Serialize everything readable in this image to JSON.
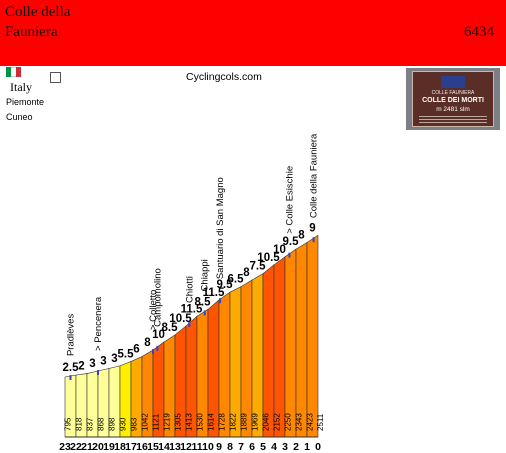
{
  "header": {
    "title": "Colle della Fauniera",
    "id": "6434",
    "background": "#ff0000"
  },
  "info": {
    "country": "Italy",
    "region": "Piemonte",
    "province": "Cuneo",
    "site": "Cyclingcols.com",
    "flag_colors": [
      "#009246",
      "#ffffff",
      "#ce2b37"
    ]
  },
  "photo": {
    "sign_title": "COLLE DEI MORTI",
    "sign_name": "COLLE FAUNIERA",
    "sign_altitude": "m 2481 slm"
  },
  "chart_data": {
    "type": "area",
    "x_km": [
      23,
      22,
      21,
      20,
      19,
      18,
      17,
      16,
      15,
      14,
      13,
      12,
      11,
      10,
      9,
      8,
      7,
      6,
      5,
      4,
      3,
      2,
      1,
      0
    ],
    "x_tick_labels": [
      "23",
      "22",
      "21",
      "20",
      "19",
      "18",
      "17",
      "16",
      "15",
      "14",
      "13",
      "12",
      "11",
      "10",
      "9",
      "8",
      "7",
      "6",
      "5",
      "4",
      "3",
      "2",
      "1",
      "0"
    ],
    "altitudes": [
      795,
      818,
      837,
      868,
      898,
      930,
      983,
      1042,
      1121,
      1219,
      1305,
      1413,
      1530,
      1614,
      1728,
      1822,
      1889,
      1969,
      2046,
      2152,
      2250,
      2343,
      2423,
      2511
    ],
    "gradients": [
      "2.5",
      "2",
      "3",
      "3",
      "3",
      "5.5",
      "6",
      "8",
      "10",
      "8.5",
      "10.5",
      "11.5",
      "8.5",
      "11.5",
      "9.5",
      "6.5",
      "8",
      "7.5",
      "10.5",
      "10",
      "9.5",
      "8",
      "9"
    ],
    "landmarks": [
      {
        "km": 22.5,
        "label": "Pradlèves"
      },
      {
        "km": 20.0,
        "label": "> Pencenera"
      },
      {
        "km": 15.0,
        "label": "> Colletto"
      },
      {
        "km": 14.6,
        "label": "Campomolino"
      },
      {
        "km": 11.7,
        "label": "Chiotti"
      },
      {
        "km": 10.3,
        "label": "Chiappi"
      },
      {
        "km": 8.9,
        "label": "Santuario di San Magno"
      },
      {
        "km": 2.6,
        "label": "> Colle Esischie"
      },
      {
        "km": 0.4,
        "label": "Colle della Fauniera"
      }
    ],
    "colors": {
      "slope_0_4": "#ffff99",
      "slope_4_6": "#ffee00",
      "slope_6_8": "#ffaa00",
      "slope_8_10": "#ff8800",
      "slope_10_12": "#ff5500",
      "outline": "#333333",
      "marker": "#3344cc"
    }
  }
}
